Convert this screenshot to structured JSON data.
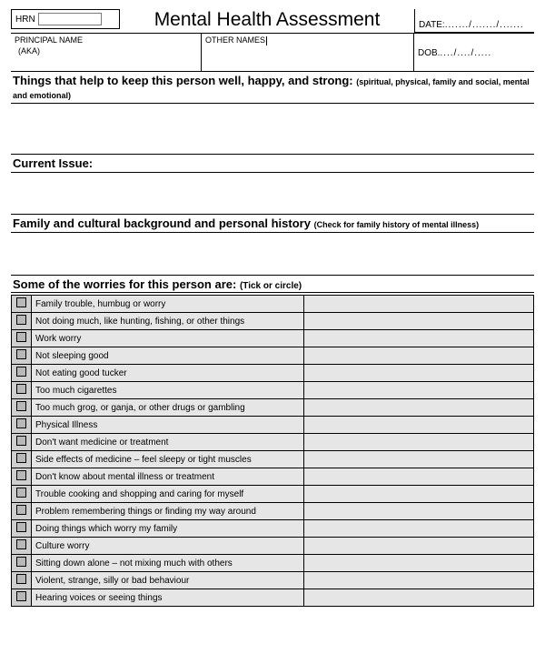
{
  "header": {
    "hrn_label": "HRN",
    "title": "Mental Health Assessment",
    "date_label": "DATE:",
    "date_value": "......./......./.......",
    "principal_label": "PRINCIPAL NAME",
    "other_label": "OTHER NAMES",
    "aka_label": "(AKA)",
    "dob_label": "DOB.",
    "dob_value": "..../..../....."
  },
  "sections": {
    "s1_title": "Things that help to keep this person well, happy, and strong:",
    "s1_sub": "(spiritual, physical, family and social, mental and emotional)",
    "s2_title": "Current Issue:",
    "s3_title": "Family and cultural background and personal history",
    "s3_sub": "(Check for family history of mental illness)",
    "s4_title": "Some of the worries for this person are:",
    "s4_sub": "(Tick or circle)"
  },
  "worries": [
    "Family trouble, humbug or worry",
    "Not doing much, like hunting, fishing, or other things",
    "Work worry",
    "Not sleeping good",
    "Not eating good tucker",
    "Too much cigarettes",
    "Too much grog, or ganja, or other drugs or gambling",
    "Physical Illness",
    "Don't want medicine or treatment",
    "Side effects of medicine – feel sleepy or tight muscles",
    "Don't know about mental illness or treatment",
    "Trouble cooking and shopping and caring for myself",
    "Problem remembering things or finding my way around",
    "Doing things which worry my family",
    "Culture worry",
    "Sitting down alone – not mixing much with others",
    "Violent, strange, silly or bad behaviour",
    "Hearing voices or seeing things"
  ],
  "style": {
    "page_bg": "#ffffff",
    "text_color": "#000000",
    "table_bg": "#e6e6e6",
    "checkbox_col_bg": "#cfcfcf",
    "checkbox_fill": "#b8b8b8",
    "border_color": "#000000",
    "title_fontsize": 21,
    "section_fontsize": 13,
    "body_fontsize": 10
  }
}
